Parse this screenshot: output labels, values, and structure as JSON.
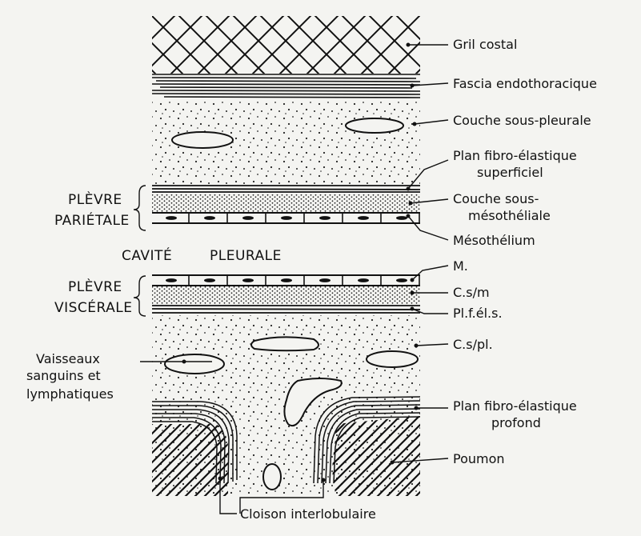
{
  "labels": {
    "gril_costal": "Gril costal",
    "fascia": "Fascia endothoracique",
    "couche_sous_pleurale": "Couche sous-pleurale",
    "plan_superficiel_1": "Plan fibro-élastique",
    "plan_superficiel_2": "superficiel",
    "couche_sous_meso_1": "Couche sous-",
    "couche_sous_meso_2": "mésothéliale",
    "mesothelium": "Mésothélium",
    "m_abbr": "M.",
    "csm_abbr": "C.s/m",
    "plfels_abbr": "Pl.f.él.s.",
    "cspl_abbr": "C.s/pl.",
    "plan_profond_1": "Plan fibro-élastique",
    "plan_profond_2": "profond",
    "poumon": "Poumon",
    "cloison": "Cloison interlobulaire",
    "vaisseaux_1": "Vaisseaux",
    "vaisseaux_2": "sanguins et",
    "vaisseaux_3": "lymphatiques",
    "plevre_parietale_1": "PLÈVRE",
    "plevre_parietale_2": "PARIÉTALE",
    "cavite": "CAVITÉ",
    "pleurale": "PLEURALE",
    "plevre_viscerale_1": "PLÈVRE",
    "plevre_viscerale_2": "VISCÉRALE"
  },
  "colors": {
    "ink": "#111111",
    "paper": "#f4f4f1"
  }
}
